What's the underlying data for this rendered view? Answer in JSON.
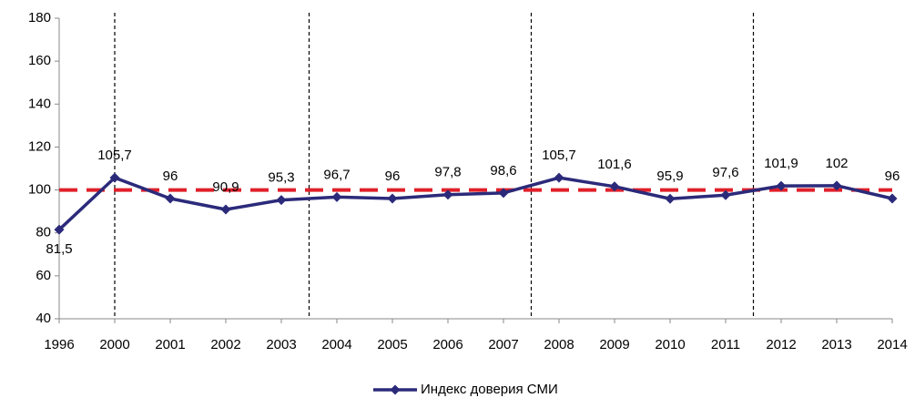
{
  "chart_data": {
    "type": "line",
    "categories": [
      "1996",
      "2000",
      "2001",
      "2002",
      "2003",
      "2004",
      "2005",
      "2006",
      "2007",
      "2008",
      "2009",
      "2010",
      "2011",
      "2012",
      "2013",
      "2014"
    ],
    "series": [
      {
        "name": "Индекс доверия СМИ",
        "color": "#2b2a7a",
        "values": [
          81.5,
          105.7,
          96,
          90.9,
          95.3,
          96.7,
          96,
          97.8,
          98.6,
          105.7,
          101.6,
          95.9,
          97.6,
          101.9,
          102,
          96
        ],
        "value_labels": [
          "81,5",
          "105,7",
          "96",
          "90,9",
          "95,3",
          "96,7",
          "96",
          "97,8",
          "98,6",
          "105,7",
          "101,6",
          "95,9",
          "97,6",
          "101,9",
          "102",
          "96"
        ]
      }
    ],
    "ylim": [
      40,
      180
    ],
    "yticks": [
      40,
      60,
      80,
      100,
      120,
      140,
      160,
      180
    ],
    "reference_line": {
      "value": 100,
      "color": "#e0202a"
    },
    "legend": "bottom"
  }
}
